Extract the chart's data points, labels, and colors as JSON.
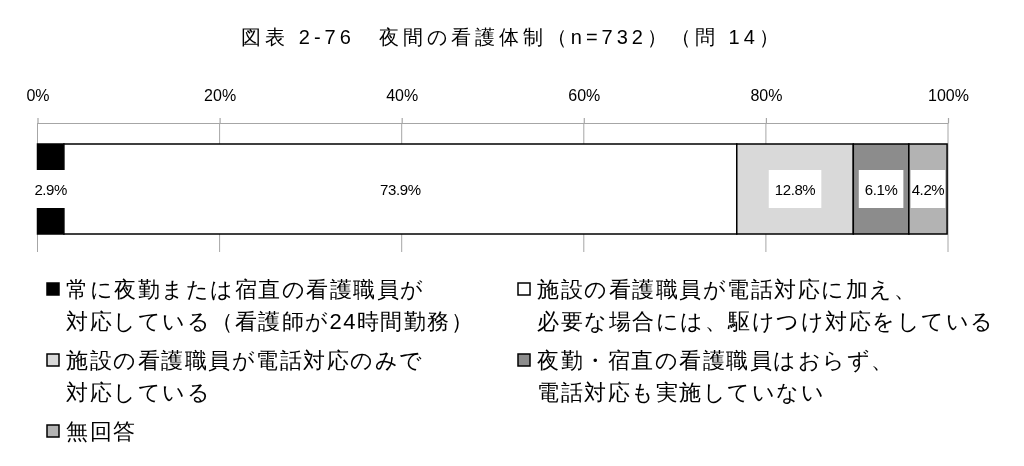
{
  "chart_data": {
    "type": "bar",
    "title": "図表 2-76　夜間の看護体制（n=732）（問 14）",
    "orientation": "horizontal",
    "stacked": true,
    "categories": [
      null
    ],
    "xlim": [
      0,
      100
    ],
    "xticks": [
      {
        "value": 0,
        "label": "0%"
      },
      {
        "value": 20,
        "label": "20%"
      },
      {
        "value": 40,
        "label": "40%"
      },
      {
        "value": 60,
        "label": "60%"
      },
      {
        "value": 80,
        "label": "80%"
      },
      {
        "value": 100,
        "label": "100%"
      }
    ],
    "grid": "x",
    "legend": "bottom",
    "series": [
      {
        "name": "常に夜勤または宿直の看護職員が対応している（看護師が24時間勤務）",
        "color": "#000000",
        "values": [
          2.9
        ],
        "value_labels": [
          "2.9%"
        ]
      },
      {
        "name": "施設の看護職員が電話対応に加え、必要な場合には、駆けつけ対応をしている",
        "color": "#ffffff",
        "values": [
          73.9
        ],
        "value_labels": [
          "73.9%"
        ]
      },
      {
        "name": "施設の看護職員が電話対応のみで対応している",
        "color": "#d9d9d9",
        "values": [
          12.8
        ],
        "value_labels": [
          "12.8%"
        ]
      },
      {
        "name": "夜勤・宿直の看護職員はおらず、電話対応も実施していない",
        "color": "#8c8c8c",
        "values": [
          6.1
        ],
        "value_labels": [
          "6.1%"
        ]
      },
      {
        "name": "無回答",
        "color": "#b3b3b3",
        "values": [
          4.2
        ],
        "value_labels": [
          "4.2%"
        ]
      }
    ]
  }
}
